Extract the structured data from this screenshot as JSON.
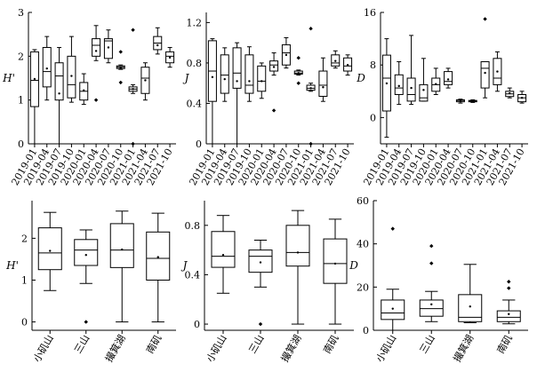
{
  "chart_data": [
    {
      "type": "box",
      "ylabel": "H'",
      "ylim": [
        0,
        3
      ],
      "yticks": [
        0,
        1,
        2,
        3
      ],
      "categories": [
        "2019-01",
        "2019-04",
        "2019-07",
        "2019-10",
        "2020-01",
        "2020-04",
        "2020-07",
        "2020-10",
        "2021-01",
        "2021-04",
        "2021-07",
        "2021-10"
      ],
      "boxes": [
        {
          "whisker_low": 0,
          "q1": 0.85,
          "median": 1.45,
          "q3": 2.1,
          "whisker_high": 2.15,
          "mean": 1.48,
          "outliers": []
        },
        {
          "whisker_low": 1.0,
          "q1": 1.3,
          "median": 1.65,
          "q3": 2.2,
          "whisker_high": 2.45,
          "mean": 1.72,
          "outliers": []
        },
        {
          "whisker_low": 0,
          "q1": 1.0,
          "median": 1.55,
          "q3": 1.85,
          "whisker_high": 2.2,
          "mean": 1.15,
          "outliers": []
        },
        {
          "whisker_low": 0.95,
          "q1": 1.05,
          "median": 1.35,
          "q3": 2.0,
          "whisker_high": 2.45,
          "mean": 1.55,
          "outliers": []
        },
        {
          "whisker_low": 0.9,
          "q1": 1.0,
          "median": 1.2,
          "q3": 1.4,
          "whisker_high": 1.6,
          "mean": 1.22,
          "outliers": []
        },
        {
          "whisker_low": 1.9,
          "q1": 2.0,
          "median": 2.25,
          "q3": 2.4,
          "whisker_high": 2.7,
          "mean": 2.12,
          "outliers": [
            1.0
          ]
        },
        {
          "whisker_low": 1.85,
          "q1": 1.95,
          "median": 2.35,
          "q3": 2.4,
          "whisker_high": 2.6,
          "mean": 2.2,
          "outliers": []
        },
        {
          "whisker_low": 1.7,
          "q1": 1.72,
          "median": 1.75,
          "q3": 1.78,
          "whisker_high": 1.8,
          "mean": 1.74,
          "outliers": [
            2.1,
            1.4
          ]
        },
        {
          "whisker_low": 1.15,
          "q1": 1.2,
          "median": 1.25,
          "q3": 1.3,
          "whisker_high": 1.35,
          "mean": 1.25,
          "outliers": [
            2.6,
            0
          ]
        },
        {
          "whisker_low": 1.0,
          "q1": 1.15,
          "median": 1.5,
          "q3": 1.75,
          "whisker_high": 1.85,
          "mean": 1.45,
          "outliers": []
        },
        {
          "whisker_low": 2.05,
          "q1": 2.15,
          "median": 2.3,
          "q3": 2.45,
          "whisker_high": 2.65,
          "mean": 2.25,
          "outliers": []
        },
        {
          "whisker_low": 1.75,
          "q1": 1.85,
          "median": 2.0,
          "q3": 2.1,
          "whisker_high": 2.2,
          "mean": 1.97,
          "outliers": []
        }
      ]
    },
    {
      "type": "box",
      "ylabel": "J",
      "ylim": [
        0,
        1.3
      ],
      "yticks": [
        0,
        0.4,
        0.8,
        1.2
      ],
      "categories": [
        "2019-01",
        "2019-04",
        "2019-07",
        "2019-10",
        "2020-01",
        "2020-04",
        "2020-07",
        "2020-10",
        "2021-01",
        "2021-04",
        "2021-07",
        "2021-10"
      ],
      "boxes": [
        {
          "whisker_low": 0,
          "q1": 0.42,
          "median": 0.72,
          "q3": 1.02,
          "whisker_high": 1.04,
          "mean": 0.66,
          "outliers": []
        },
        {
          "whisker_low": 0.42,
          "q1": 0.5,
          "median": 0.68,
          "q3": 0.88,
          "whisker_high": 0.95,
          "mean": 0.64,
          "outliers": []
        },
        {
          "whisker_low": 0,
          "q1": 0.55,
          "median": 0.7,
          "q3": 0.95,
          "whisker_high": 1.0,
          "mean": 0.62,
          "outliers": []
        },
        {
          "whisker_low": 0.42,
          "q1": 0.5,
          "median": 0.58,
          "q3": 0.88,
          "whisker_high": 0.96,
          "mean": 0.62,
          "outliers": []
        },
        {
          "whisker_low": 0.45,
          "q1": 0.52,
          "median": 0.62,
          "q3": 0.77,
          "whisker_high": 0.8,
          "mean": 0.62,
          "outliers": []
        },
        {
          "whisker_low": 0.68,
          "q1": 0.72,
          "median": 0.78,
          "q3": 0.82,
          "whisker_high": 0.9,
          "mean": 0.76,
          "outliers": [
            0.33
          ]
        },
        {
          "whisker_low": 0.75,
          "q1": 0.78,
          "median": 0.9,
          "q3": 0.98,
          "whisker_high": 1.05,
          "mean": 0.88,
          "outliers": []
        },
        {
          "whisker_low": 0.68,
          "q1": 0.69,
          "median": 0.7,
          "q3": 0.72,
          "whisker_high": 0.73,
          "mean": 0.7,
          "outliers": [
            0.85,
            0.6
          ]
        },
        {
          "whisker_low": 0.52,
          "q1": 0.53,
          "median": 0.55,
          "q3": 0.58,
          "whisker_high": 0.6,
          "mean": 0.55,
          "outliers": [
            1.14,
            0
          ]
        },
        {
          "whisker_low": 0.42,
          "q1": 0.47,
          "median": 0.58,
          "q3": 0.72,
          "whisker_high": 0.85,
          "mean": 0.56,
          "outliers": []
        },
        {
          "whisker_low": 0.75,
          "q1": 0.77,
          "median": 0.8,
          "q3": 0.88,
          "whisker_high": 0.92,
          "mean": 0.82,
          "outliers": []
        },
        {
          "whisker_low": 0.68,
          "q1": 0.72,
          "median": 0.77,
          "q3": 0.85,
          "whisker_high": 0.88,
          "mean": 0.78,
          "outliers": []
        }
      ]
    },
    {
      "type": "box",
      "ylabel": "D",
      "ylim": [
        -4,
        16
      ],
      "yticks": [
        0,
        8,
        16
      ],
      "categories": [
        "2019-01",
        "2019-04",
        "2019-07",
        "2019-10",
        "2020-01",
        "2020-04",
        "2020-07",
        "2020-10",
        "2021-01",
        "2021-04",
        "2021-07",
        "2021-10"
      ],
      "boxes": [
        {
          "whisker_low": -3,
          "q1": 1.0,
          "median": 6.0,
          "q3": 9.5,
          "whisker_high": 12.0,
          "mean": 5.2,
          "outliers": []
        },
        {
          "whisker_low": 2.0,
          "q1": 3.5,
          "median": 4.5,
          "q3": 6.5,
          "whisker_high": 8.5,
          "mean": 4.8,
          "outliers": []
        },
        {
          "whisker_low": 2.0,
          "q1": 2.5,
          "median": 3.5,
          "q3": 6.0,
          "whisker_high": 12.5,
          "mean": 4.5,
          "outliers": []
        },
        {
          "whisker_low": 2.5,
          "q1": 2.5,
          "median": 3.0,
          "q3": 5.0,
          "whisker_high": 9.0,
          "mean": 4.2,
          "outliers": []
        },
        {
          "whisker_low": 3.5,
          "q1": 4.0,
          "median": 5.0,
          "q3": 6.0,
          "whisker_high": 7.5,
          "mean": 5.1,
          "outliers": []
        },
        {
          "whisker_low": 4.5,
          "q1": 5.0,
          "median": 5.5,
          "q3": 7.0,
          "whisker_high": 7.5,
          "mean": 5.8,
          "outliers": []
        },
        {
          "whisker_low": 2.2,
          "q1": 2.4,
          "median": 2.6,
          "q3": 2.7,
          "whisker_high": 2.8,
          "mean": 2.55,
          "outliers": []
        },
        {
          "whisker_low": 2.3,
          "q1": 2.4,
          "median": 2.5,
          "q3": 2.6,
          "whisker_high": 2.7,
          "mean": 2.5,
          "outliers": []
        },
        {
          "whisker_low": 3.0,
          "q1": 4.5,
          "median": 7.5,
          "q3": 8.5,
          "whisker_high": 8.5,
          "mean": 6.8,
          "outliers": [
            15.0
          ]
        },
        {
          "whisker_low": 4.0,
          "q1": 5.0,
          "median": 6.0,
          "q3": 9.0,
          "whisker_high": 10.0,
          "mean": 7.0,
          "outliers": []
        },
        {
          "whisker_low": 3.0,
          "q1": 3.2,
          "median": 3.6,
          "q3": 4.0,
          "whisker_high": 4.5,
          "mean": 3.7,
          "outliers": []
        },
        {
          "whisker_low": 2.2,
          "q1": 2.4,
          "median": 3.0,
          "q3": 3.5,
          "whisker_high": 4.0,
          "mean": 3.0,
          "outliers": []
        }
      ]
    },
    {
      "type": "box",
      "ylabel": "H'",
      "ylim": [
        -0.2,
        2.9
      ],
      "yticks": [
        0,
        1,
        2
      ],
      "categories": [
        "小矶山",
        "三山",
        "撮箕湖",
        "南矶"
      ],
      "boxes": [
        {
          "whisker_low": 0.75,
          "q1": 1.25,
          "median": 1.65,
          "q3": 2.25,
          "whisker_high": 2.62,
          "mean": 1.7,
          "outliers": []
        },
        {
          "whisker_low": 0.92,
          "q1": 1.35,
          "median": 1.72,
          "q3": 1.97,
          "whisker_high": 2.2,
          "mean": 1.6,
          "outliers": [
            0
          ]
        },
        {
          "whisker_low": 0,
          "q1": 1.3,
          "median": 1.72,
          "q3": 2.35,
          "whisker_high": 2.65,
          "mean": 1.73,
          "outliers": []
        },
        {
          "whisker_low": 0,
          "q1": 1.0,
          "median": 1.52,
          "q3": 2.15,
          "whisker_high": 2.6,
          "mean": 1.55,
          "outliers": []
        }
      ]
    },
    {
      "type": "box",
      "ylabel": "J",
      "ylim": [
        -0.05,
        1.0
      ],
      "yticks": [
        0,
        0.4,
        0.8
      ],
      "categories": [
        "小矶山",
        "三山",
        "撮箕湖",
        "南矶"
      ],
      "boxes": [
        {
          "whisker_low": 0.25,
          "q1": 0.46,
          "median": 0.55,
          "q3": 0.75,
          "whisker_high": 0.88,
          "mean": 0.56,
          "outliers": []
        },
        {
          "whisker_low": 0.3,
          "q1": 0.42,
          "median": 0.55,
          "q3": 0.6,
          "whisker_high": 0.68,
          "mean": 0.5,
          "outliers": [
            0
          ]
        },
        {
          "whisker_low": 0,
          "q1": 0.47,
          "median": 0.58,
          "q3": 0.8,
          "whisker_high": 0.92,
          "mean": 0.58,
          "outliers": []
        },
        {
          "whisker_low": 0,
          "q1": 0.33,
          "median": 0.49,
          "q3": 0.69,
          "whisker_high": 0.85,
          "mean": 0.49,
          "outliers": []
        }
      ]
    },
    {
      "type": "box",
      "ylabel": "D",
      "ylim": [
        0,
        60
      ],
      "yticks": [
        0,
        20,
        40,
        60
      ],
      "categories": [
        "小矶山",
        "三山",
        "撮箕湖",
        "南矶"
      ],
      "boxes": [
        {
          "whisker_low": 0,
          "q1": 5.0,
          "median": 8.0,
          "q3": 14.0,
          "whisker_high": 19.0,
          "mean": 10.0,
          "outliers": [
            47.0
          ]
        },
        {
          "whisker_low": 4.0,
          "q1": 6.5,
          "median": 10.0,
          "q3": 14.0,
          "whisker_high": 18.0,
          "mean": 12.0,
          "outliers": [
            39.0,
            31.0
          ]
        },
        {
          "whisker_low": 3.5,
          "q1": 4.0,
          "median": 6.0,
          "q3": 16.5,
          "whisker_high": 30.5,
          "mean": 11.0,
          "outliers": []
        },
        {
          "whisker_low": 3.0,
          "q1": 4.0,
          "median": 6.0,
          "q3": 9.0,
          "whisker_high": 14.0,
          "mean": 7.5,
          "outliers": [
            22.5,
            19.5
          ]
        }
      ]
    }
  ]
}
